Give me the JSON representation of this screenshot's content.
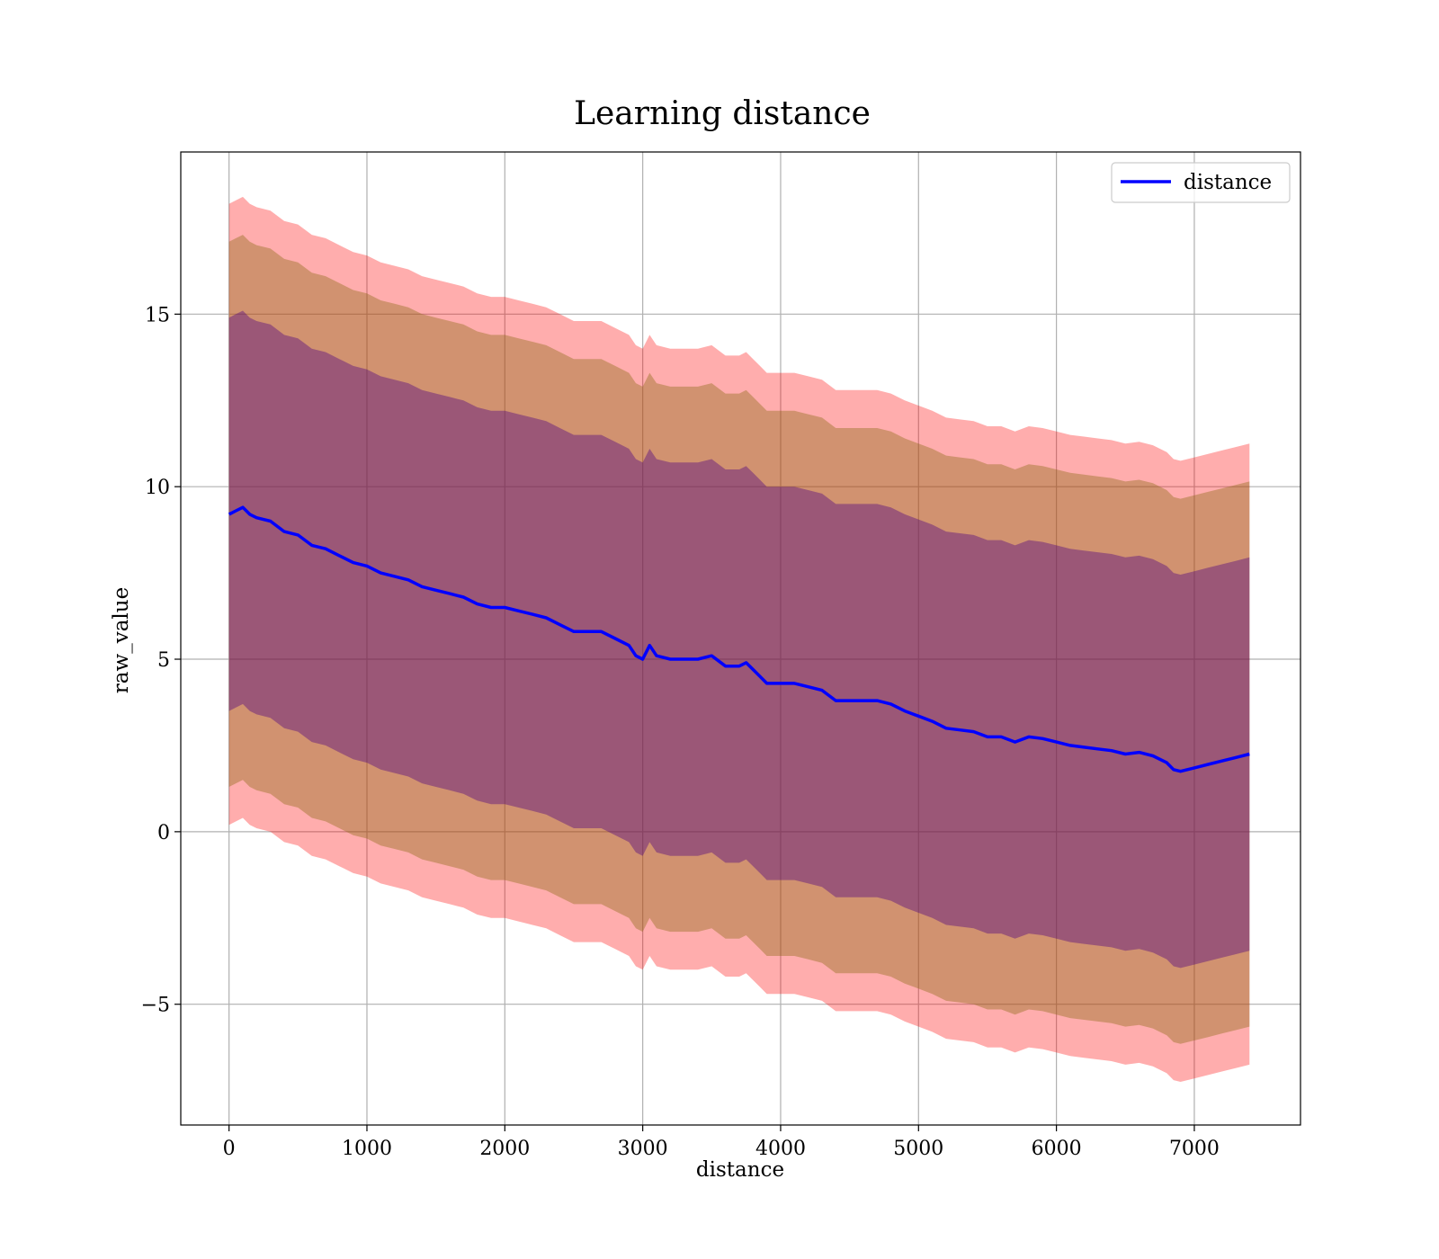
{
  "chart_data": {
    "type": "line",
    "title": "Learning distance",
    "xlabel": "distance",
    "ylabel": "raw_value",
    "xlim": [
      -350,
      7770
    ],
    "ylim": [
      -8.5,
      19.7
    ],
    "x_ticks": [
      0,
      1000,
      2000,
      3000,
      4000,
      5000,
      6000,
      7000
    ],
    "x_tick_labels": [
      "0",
      "1000",
      "2000",
      "3000",
      "4000",
      "5000",
      "6000",
      "7000"
    ],
    "y_ticks": [
      -5,
      0,
      5,
      10,
      15
    ],
    "y_tick_labels": [
      "−5",
      "0",
      "5",
      "10",
      "15"
    ],
    "grid": true,
    "legend": {
      "position": "top-right",
      "entries": [
        "distance"
      ]
    },
    "colors": {
      "line": "#0000ff",
      "band_outer": "#ff0000",
      "band_middle": "#8b6914",
      "band_inner": "#4b0082"
    },
    "x": [
      0,
      50,
      100,
      150,
      200,
      300,
      400,
      500,
      600,
      700,
      800,
      900,
      1000,
      1100,
      1200,
      1300,
      1400,
      1500,
      1600,
      1700,
      1800,
      1900,
      2000,
      2100,
      2200,
      2300,
      2400,
      2500,
      2600,
      2700,
      2800,
      2900,
      2950,
      3000,
      3050,
      3100,
      3200,
      3300,
      3400,
      3500,
      3600,
      3700,
      3750,
      3800,
      3850,
      3900,
      4000,
      4100,
      4200,
      4300,
      4400,
      4500,
      4600,
      4700,
      4800,
      4900,
      5000,
      5100,
      5200,
      5300,
      5400,
      5500,
      5600,
      5700,
      5800,
      5900,
      6000,
      6100,
      6200,
      6300,
      6400,
      6500,
      6600,
      6700,
      6800,
      6850,
      6900,
      7000,
      7100,
      7200,
      7300,
      7400
    ],
    "series": [
      {
        "name": "distance",
        "y": [
          9.2,
          9.3,
          9.4,
          9.2,
          9.1,
          9.0,
          8.7,
          8.6,
          8.3,
          8.2,
          8.0,
          7.8,
          7.7,
          7.5,
          7.4,
          7.3,
          7.1,
          7.0,
          6.9,
          6.8,
          6.6,
          6.5,
          6.5,
          6.4,
          6.3,
          6.2,
          6.0,
          5.8,
          5.8,
          5.8,
          5.6,
          5.4,
          5.1,
          5.0,
          5.4,
          5.1,
          5.0,
          5.0,
          5.0,
          5.1,
          4.8,
          4.8,
          4.9,
          4.7,
          4.5,
          4.3,
          4.3,
          4.3,
          4.2,
          4.1,
          3.8,
          3.8,
          3.8,
          3.8,
          3.7,
          3.5,
          3.35,
          3.2,
          3.0,
          2.95,
          2.9,
          2.75,
          2.75,
          2.6,
          2.75,
          2.7,
          2.6,
          2.5,
          2.45,
          2.4,
          2.35,
          2.25,
          2.3,
          2.2,
          2.0,
          1.8,
          1.75,
          1.85,
          1.95,
          2.05,
          2.15,
          2.25
        ],
        "bands": [
          {
            "name": "outer",
            "half_width": 9.0
          },
          {
            "name": "middle",
            "half_width": 7.9
          },
          {
            "name": "inner",
            "half_width": 5.7
          }
        ]
      }
    ]
  }
}
